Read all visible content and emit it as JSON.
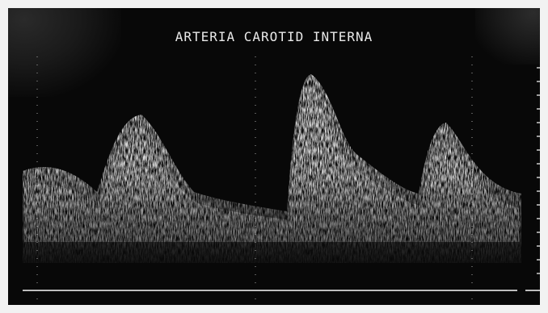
{
  "title": "ARTERIA CAROTID INTERNA",
  "icons": [
    "doppler-spectrum-icon"
  ],
  "colors": {
    "background": "#080808",
    "spectrum": "#d9d9d9",
    "title": "#e9e9e9",
    "baseline": "#bdbdbd",
    "frame": "#f2f2f2"
  }
}
